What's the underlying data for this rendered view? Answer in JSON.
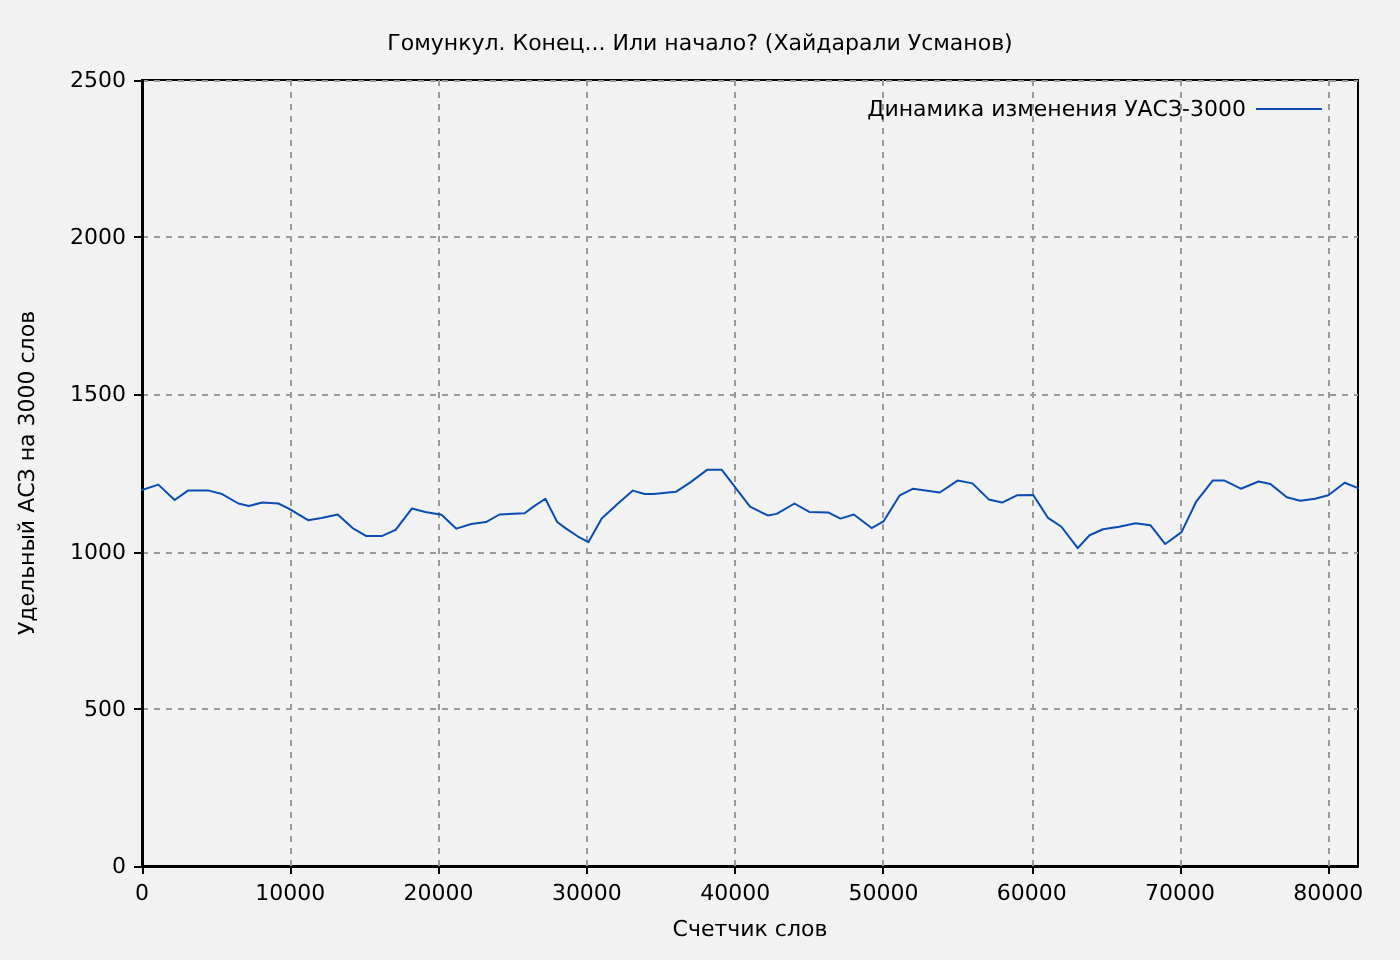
{
  "chart_data": {
    "type": "line",
    "title": "Гомункул. Конец... Или начало? (Хайдарали Усманов)",
    "xlabel": "Счетчик слов",
    "ylabel": "Удельный АСЗ на 3000 слов",
    "x": [
      0,
      1100,
      2200,
      3100,
      4500,
      5400,
      6500,
      7200,
      8100,
      9200,
      9900,
      11200,
      12100,
      13200,
      14200,
      15100,
      16200,
      17100,
      18200,
      19100,
      20200,
      21200,
      22200,
      23200,
      24100,
      25800,
      26400,
      27200,
      28000,
      28600,
      29400,
      30100,
      31000,
      32100,
      33100,
      33900,
      34500,
      36000,
      37000,
      38100,
      39100,
      41000,
      42200,
      42800,
      44000,
      45000,
      46300,
      47100,
      48000,
      49200,
      50000,
      51100,
      52000,
      53800,
      55000,
      56000,
      57100,
      58000,
      59000,
      60100,
      61100,
      62000,
      63100,
      63900,
      64800,
      65900,
      67000,
      68000,
      69000,
      70100,
      71100,
      72200,
      73000,
      74100,
      75300,
      76100,
      77200,
      78100,
      79100,
      80000,
      81100,
      82000
    ],
    "series": [
      {
        "name": "Динамика изменения УАСЗ-3000",
        "color": "#0a4cb4",
        "values": [
          1196,
          1213,
          1164,
          1194,
          1194,
          1183,
          1153,
          1145,
          1156,
          1153,
          1137,
          1100,
          1107,
          1118,
          1075,
          1050,
          1050,
          1069,
          1137,
          1126,
          1117,
          1073,
          1088,
          1094,
          1118,
          1122,
          1143,
          1168,
          1094,
          1073,
          1048,
          1030,
          1105,
          1153,
          1194,
          1183,
          1183,
          1190,
          1221,
          1260,
          1260,
          1143,
          1115,
          1120,
          1153,
          1126,
          1124,
          1105,
          1118,
          1075,
          1096,
          1179,
          1200,
          1188,
          1226,
          1217,
          1166,
          1156,
          1179,
          1180,
          1107,
          1079,
          1011,
          1052,
          1071,
          1079,
          1090,
          1084,
          1024,
          1062,
          1160,
          1226,
          1226,
          1200,
          1223,
          1215,
          1173,
          1162,
          1168,
          1179,
          1219,
          1202
        ]
      }
    ],
    "xlim": [
      0,
      82000
    ],
    "xticks": [
      0,
      10000,
      20000,
      30000,
      40000,
      50000,
      60000,
      70000,
      80000
    ],
    "ylim": [
      0,
      2500
    ],
    "yticks": [
      0,
      500,
      1000,
      1500,
      2000,
      2500
    ],
    "grid": true,
    "legend": "top right",
    "marker": "none",
    "line_style": "solid"
  }
}
